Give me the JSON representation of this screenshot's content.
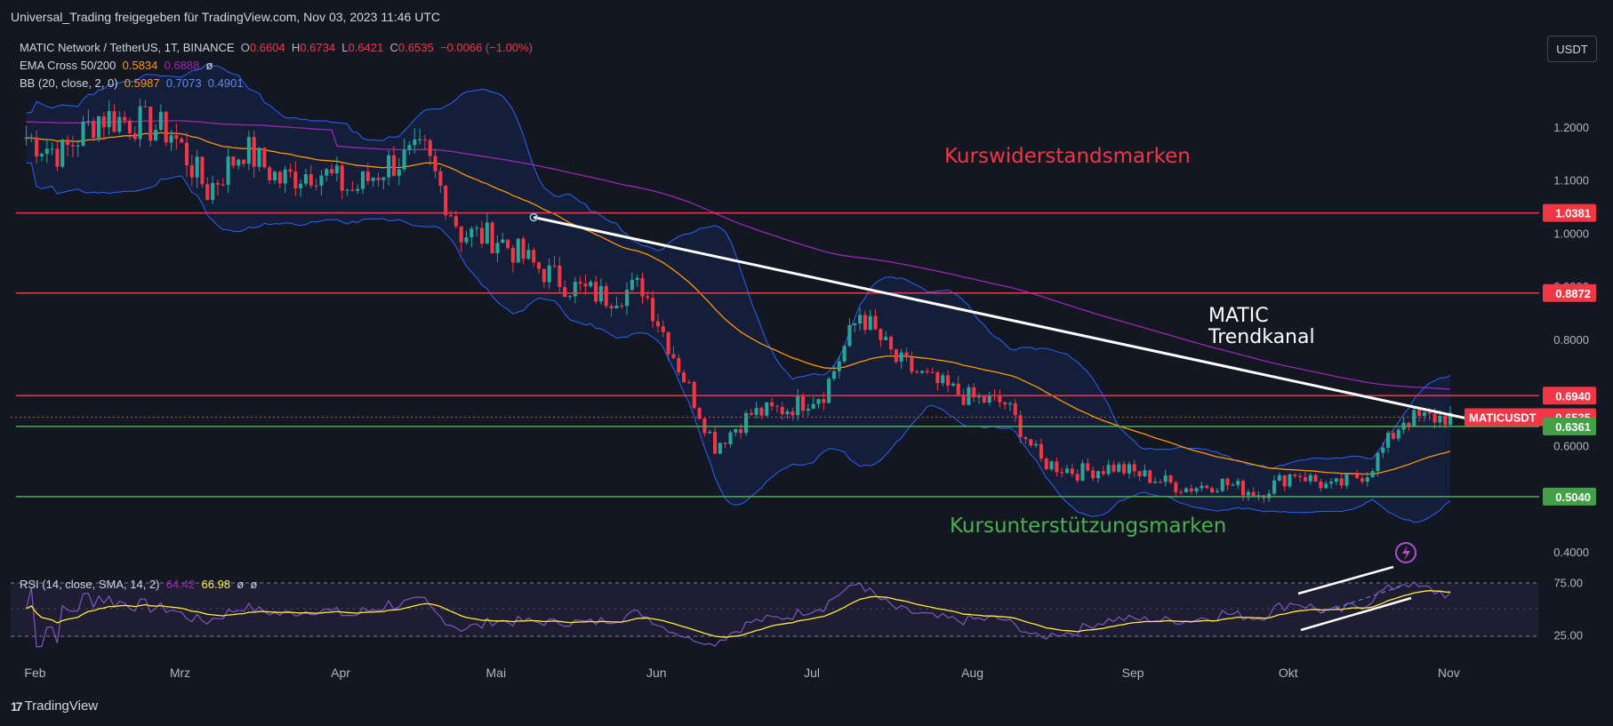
{
  "header": {
    "publish_text": "Universal_Trading freigegeben für TradingView.com, Nov 03, 2023 11:46 UTC"
  },
  "legend": {
    "symbol": "MATIC Network / TetherUS, 1T, BINANCE",
    "o_label": "O",
    "o_value": "0.6604",
    "h_label": "H",
    "h_value": "0.6734",
    "l_label": "L",
    "l_value": "0.6421",
    "c_label": "C",
    "c_value": "0.6535",
    "change": "−0.0066 (−1.00%)",
    "ema_label": "EMA Cross 50/200",
    "ema_v1": "0.5834",
    "ema_v2": "0.6888",
    "ema_sym": "ø",
    "bb_label": "BB (20, close, 2, 0)",
    "bb_v1": "0.5987",
    "bb_v2": "0.7073",
    "bb_v3": "0.4901"
  },
  "currency_button": "USDT",
  "rsi_legend": {
    "label": "RSI (14, close, SMA, 14, 2)",
    "v1": "64.42",
    "v2": "66.98",
    "sym1": "ø",
    "sym2": "ø"
  },
  "footer": {
    "brand": "TradingView",
    "logo": "17"
  },
  "annotations": {
    "resistance": "Kurswiderstandsmarken",
    "support": "Kursunterstützungsmarken",
    "trend_line1": "MATIC",
    "trend_line2": "Trendkanal"
  },
  "colors": {
    "bg": "#131722",
    "up": "#26a69a",
    "down": "#f23645",
    "resistance": "#f23645",
    "support": "#4caf50",
    "ema50": "#ff9800",
    "ema200": "#9c27b0",
    "bb": "#2962ff",
    "rsi": "#7e57c2",
    "rsi_ma": "#ffeb3b"
  },
  "chart_data": {
    "type": "candlestick",
    "ylim": [
      0.38,
      1.28
    ],
    "y_ticks": [
      "1.2000",
      "1.1000",
      "1.0000",
      "0.9000",
      "0.8000",
      "0.6000",
      "0.4000"
    ],
    "x_ticks": [
      "Feb",
      "Mrz",
      "Apr",
      "Mai",
      "Jun",
      "Jul",
      "Aug",
      "Sep",
      "Okt",
      "Nov"
    ],
    "price_labels": [
      {
        "name": "resistance-1",
        "value": "1.0381"
      },
      {
        "name": "resistance-2",
        "value": "0.8872"
      },
      {
        "name": "resistance-3",
        "value": "0.6940"
      },
      {
        "name": "current-price",
        "symbol": "MATICUSDT",
        "value": "0.6535"
      },
      {
        "name": "support-1",
        "value": "0.6361"
      },
      {
        "name": "support-2",
        "value": "0.5040"
      }
    ],
    "resistance_levels": [
      1.0381,
      0.8872,
      0.694
    ],
    "support_levels": [
      0.6361,
      0.504
    ],
    "trendline": {
      "from": {
        "date": "2023-05-10",
        "price": 1.03
      },
      "to": {
        "date": "2023-11-12",
        "price": 0.639
      }
    },
    "closes": [
      {
        "date": "2023-02-01",
        "close": 1.18
      },
      {
        "date": "2023-02-08",
        "close": 1.15
      },
      {
        "date": "2023-02-15",
        "close": 1.22
      },
      {
        "date": "2023-02-22",
        "close": 1.21
      },
      {
        "date": "2023-03-01",
        "close": 1.19
      },
      {
        "date": "2023-03-08",
        "close": 1.08
      },
      {
        "date": "2023-03-15",
        "close": 1.16
      },
      {
        "date": "2023-03-22",
        "close": 1.1
      },
      {
        "date": "2023-03-29",
        "close": 1.12
      },
      {
        "date": "2023-04-05",
        "close": 1.08
      },
      {
        "date": "2023-04-12",
        "close": 1.13
      },
      {
        "date": "2023-04-19",
        "close": 1.15
      },
      {
        "date": "2023-04-26",
        "close": 1.0
      },
      {
        "date": "2023-05-03",
        "close": 0.99
      },
      {
        "date": "2023-05-10",
        "close": 0.94
      },
      {
        "date": "2023-05-17",
        "close": 0.9
      },
      {
        "date": "2023-05-24",
        "close": 0.88
      },
      {
        "date": "2023-05-31",
        "close": 0.9
      },
      {
        "date": "2023-06-07",
        "close": 0.75
      },
      {
        "date": "2023-06-14",
        "close": 0.6
      },
      {
        "date": "2023-06-21",
        "close": 0.66
      },
      {
        "date": "2023-06-28",
        "close": 0.67
      },
      {
        "date": "2023-07-05",
        "close": 0.7
      },
      {
        "date": "2023-07-12",
        "close": 0.85
      },
      {
        "date": "2023-07-19",
        "close": 0.76
      },
      {
        "date": "2023-07-26",
        "close": 0.72
      },
      {
        "date": "2023-08-02",
        "close": 0.69
      },
      {
        "date": "2023-08-09",
        "close": 0.68
      },
      {
        "date": "2023-08-16",
        "close": 0.57
      },
      {
        "date": "2023-08-23",
        "close": 0.55
      },
      {
        "date": "2023-08-30",
        "close": 0.56
      },
      {
        "date": "2023-09-06",
        "close": 0.54
      },
      {
        "date": "2023-09-13",
        "close": 0.52
      },
      {
        "date": "2023-09-20",
        "close": 0.53
      },
      {
        "date": "2023-09-27",
        "close": 0.51
      },
      {
        "date": "2023-10-04",
        "close": 0.55
      },
      {
        "date": "2023-10-11",
        "close": 0.52
      },
      {
        "date": "2023-10-18",
        "close": 0.55
      },
      {
        "date": "2023-10-25",
        "close": 0.65
      },
      {
        "date": "2023-11-03",
        "close": 0.6535
      }
    ],
    "rsi": {
      "ylim": [
        0,
        100
      ],
      "ticks": [
        "75.00",
        "25.00"
      ]
    }
  }
}
